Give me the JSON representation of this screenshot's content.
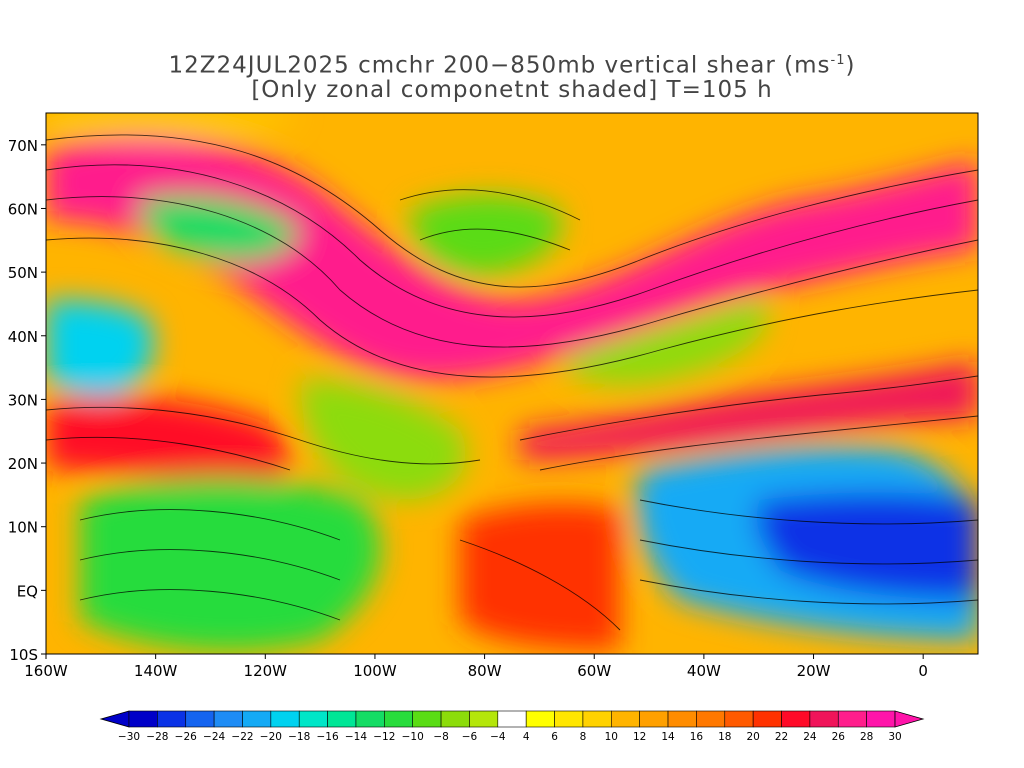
{
  "title": {
    "line1_prefix": "12Z24JUL2025 cmchr 200−850mb vertical shear (ms",
    "line1_superscript": "-1",
    "line1_suffix": ")",
    "line2": "[Only zonal componetnt shaded] T=105 h"
  },
  "map": {
    "lon_range": [
      -160,
      10
    ],
    "lat_range": [
      -10,
      75
    ],
    "lat_labels": [
      "70N",
      "60N",
      "50N",
      "40N",
      "30N",
      "20N",
      "10N",
      "EQ",
      "10S"
    ],
    "lat_values": [
      70,
      60,
      50,
      40,
      30,
      20,
      10,
      0,
      -10
    ],
    "lon_labels": [
      "160W",
      "140W",
      "120W",
      "100W",
      "80W",
      "60W",
      "40W",
      "20W",
      "0"
    ],
    "lon_values": [
      -160,
      -140,
      -120,
      -100,
      -80,
      -60,
      -40,
      -20,
      0
    ]
  },
  "colorbar": {
    "tick_labels": [
      "-30",
      "-28",
      "-26",
      "-24",
      "-22",
      "-20",
      "-18",
      "-16",
      "-14",
      "-12",
      "-10",
      "-8",
      "-6",
      "-4",
      "4",
      "6",
      "8",
      "10",
      "12",
      "14",
      "16",
      "18",
      "20",
      "22",
      "24",
      "26",
      "28",
      "30"
    ],
    "colors": [
      "#0000c8",
      "#0a32e6",
      "#1464f0",
      "#1e8cf5",
      "#14aaf5",
      "#00d2f0",
      "#00e6c8",
      "#00e696",
      "#14dc64",
      "#28dc3c",
      "#5adc14",
      "#8cdc0a",
      "#b4e60a",
      "#ffffff",
      "#ffff00",
      "#ffe600",
      "#ffd200",
      "#ffb400",
      "#ffa000",
      "#ff8c00",
      "#ff7800",
      "#ff5a00",
      "#ff3200",
      "#ff0a28",
      "#f0145a",
      "#ff1e8c",
      "#ff14aa"
    ]
  },
  "shaded_regions": [
    {
      "lon": -150,
      "lat": 35,
      "value": -14
    },
    {
      "lon": -125,
      "lat": 58,
      "value": -14
    },
    {
      "lon": -88,
      "lat": 57,
      "value": -12
    },
    {
      "lon": -130,
      "lat": 8,
      "value": -12
    },
    {
      "lon": -95,
      "lat": 25,
      "value": -10
    },
    {
      "lon": -30,
      "lat": 38,
      "value": -10
    },
    {
      "lon": -10,
      "lat": 8,
      "value": -30
    },
    {
      "lon": -25,
      "lat": 12,
      "value": -24
    },
    {
      "lon": -60,
      "lat": 50,
      "value": 28
    },
    {
      "lon": -125,
      "lat": 68,
      "value": 26
    },
    {
      "lon": -140,
      "lat": 25,
      "value": 24
    },
    {
      "lon": -40,
      "lat": 28,
      "value": 22
    },
    {
      "lon": -65,
      "lat": -8,
      "value": 20
    },
    {
      "lon": -75,
      "lat": 12,
      "value": 18
    }
  ]
}
